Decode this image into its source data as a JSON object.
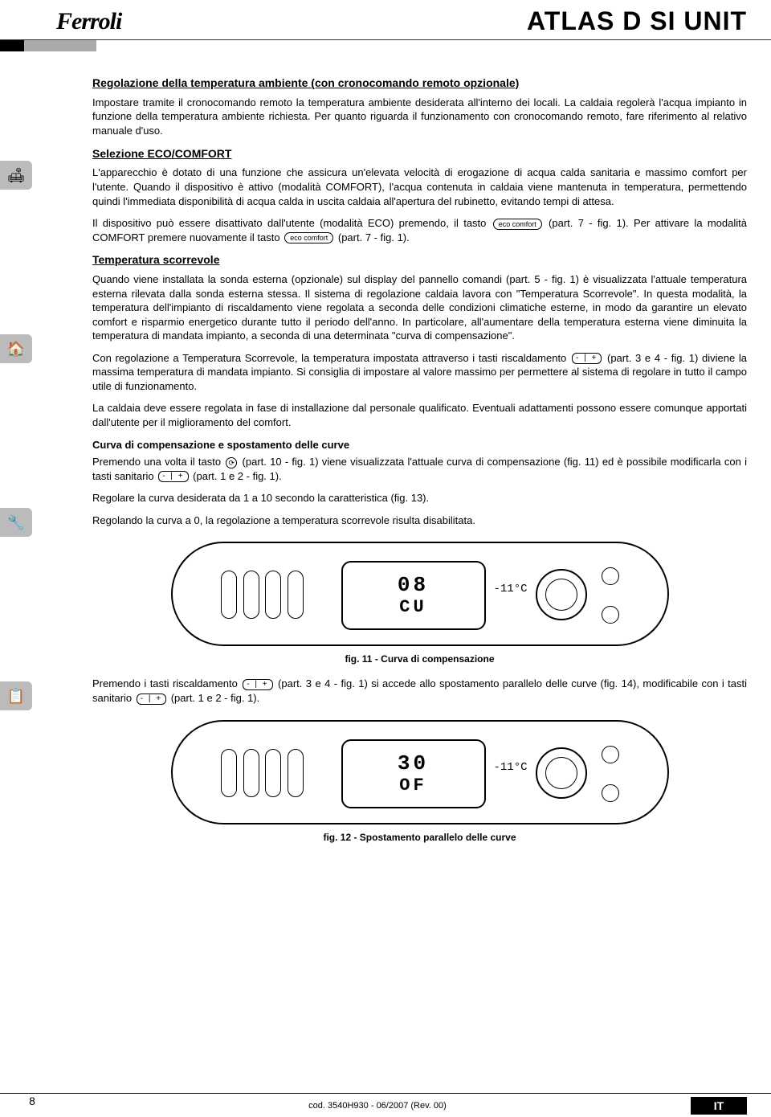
{
  "header": {
    "brand": "Ferroli",
    "product": "ATLAS D SI UNIT"
  },
  "sections": {
    "s1_title": "Regolazione della temperatura ambiente (con cronocomando remoto opzionale)",
    "s1_p1": "Impostare tramite il cronocomando remoto la temperatura ambiente desiderata all'interno dei locali. La caldaia regolerà l'acqua impianto in funzione della temperatura ambiente richiesta. Per quanto riguarda il funzionamento con cronocomando remoto, fare riferimento al relativo manuale d'uso.",
    "s2_title": "Selezione ECO/COMFORT",
    "s2_p1": "L'apparecchio è dotato di una funzione che assicura un'elevata velocità di erogazione di acqua calda sanitaria e massimo comfort per l'utente. Quando il dispositivo è attivo (modalità COMFORT), l'acqua contenuta in caldaia viene mantenuta in temperatura, permettendo quindi l'immediata disponibilità di acqua calda in uscita caldaia all'apertura del rubinetto, evitando tempi di attesa.",
    "s2_p2a": "Il dispositivo può essere disattivato dall'utente (modalità ECO) premendo, il tasto ",
    "s2_p2b": " (part. 7 - fig. 1). Per attivare la modalità COMFORT premere nuovamente il tasto ",
    "s2_p2c": " (part. 7 - fig. 1).",
    "s3_title": "Temperatura scorrevole",
    "s3_p1": "Quando viene installata la sonda esterna (opzionale) sul display del pannello comandi (part. 5 - fig. 1) è visualizzata l'attuale temperatura esterna rilevata dalla sonda esterna stessa. Il sistema di regolazione caldaia lavora con \"Temperatura Scorrevole\". In questa modalità, la temperatura dell'impianto di riscaldamento viene regolata a seconda delle condizioni climatiche esterne, in modo da garantire un elevato comfort e risparmio energetico durante tutto il periodo dell'anno. In particolare, all'aumentare della temperatura esterna viene diminuita la temperatura di mandata impianto, a seconda di una determinata \"curva di compensazione\".",
    "s3_p2a": "Con regolazione a Temperatura Scorrevole, la temperatura impostata attraverso i tasti riscaldamento ",
    "s3_p2b": " (part. 3 e 4 - fig. 1) diviene la massima temperatura di mandata impianto. Si consiglia di impostare al valore massimo per permettere al sistema di regolare in tutto il campo utile di funzionamento.",
    "s3_p3": "La caldaia deve essere regolata in fase di installazione dal personale qualificato. Eventuali adattamenti possono essere comunque apportati dall'utente per il miglioramento del comfort.",
    "s3_h4": "Curva di compensazione e spostamento delle curve",
    "s3_p4a": "Premendo una volta il tasto ",
    "s3_p4b": " (part. 10 - fig. 1) viene visualizzata l'attuale curva di compensazione (fig. 11) ed è possibile modificarla con i tasti sanitario ",
    "s3_p4c": " (part. 1 e 2 - fig. 1).",
    "s3_p5": "Regolare la curva desiderata da 1 a 10 secondo la caratteristica (fig. 13).",
    "s3_p6": "Regolando la curva a 0, la regolazione a temperatura scorrevole risulta disabilitata.",
    "s4_p1a": "Premendo i tasti riscaldamento ",
    "s4_p1b": " (part. 3 e 4 - fig. 1) si accede allo spostamento parallelo delle curve (fig. 14), modificabile con i tasti sanitario ",
    "s4_p1c": " (part. 1 e 2 - fig. 1)."
  },
  "panels": {
    "p1_row1": "08",
    "p1_row2": "CU",
    "p1_temp": "-11°C",
    "p1_caption": "fig. 11 - Curva di compensazione",
    "p2_row1": "30",
    "p2_row2": "OF",
    "p2_temp": "-11°C",
    "p2_caption": "fig. 12 - Spostamento parallelo delle curve"
  },
  "icons": {
    "eco_comfort": "eco comfort",
    "plusminus": "- | +",
    "mode": "⟳"
  },
  "footer": {
    "page": "8",
    "code": "cod. 3540H930  -  06/2007  (Rev. 00)",
    "lang": "IT"
  }
}
